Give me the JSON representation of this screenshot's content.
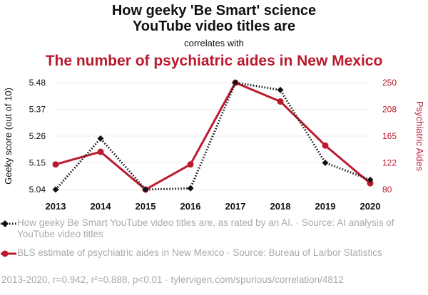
{
  "header": {
    "title_line1": "How geeky 'Be Smart' science",
    "title_line2": "YouTube video titles are",
    "correlates": "correlates with",
    "title_red": "The number of psychiatric aides in New Mexico"
  },
  "legend": {
    "series1": "How geeky Be Smart YouTube video titles are, as rated by an AI. · Source: AI analysis of YouTube video titles",
    "series2": "BLS estimate of psychiatric aides in New Mexico · Source: Bureau of Larbor Statistics"
  },
  "footer": "2013-2020, r=0.942, r²=0.888, p<0.01 · tylervigen.com/spurious/correlation/4812",
  "colors": {
    "black_series": "#111111",
    "red_series": "#bb1a2e",
    "grid": "#eeeeee"
  },
  "chart_data": {
    "type": "line",
    "x": [
      "2013",
      "2014",
      "2015",
      "2016",
      "2017",
      "2018",
      "2019",
      "2020"
    ],
    "y_left": {
      "label": "Geeky score (out of 10)",
      "ticks": [
        "5.04",
        "5.15",
        "5.26",
        "5.37",
        "5.48"
      ],
      "range": [
        5.04,
        5.48
      ]
    },
    "y_right": {
      "label": "Psychiatric Aides",
      "ticks": [
        "80",
        "122",
        "165",
        "208",
        "250"
      ],
      "range": [
        80,
        250
      ]
    },
    "series": [
      {
        "axis": "left",
        "marker": "diamond",
        "style": "dotted",
        "values": [
          5.04,
          5.25,
          5.04,
          5.045,
          5.48,
          5.45,
          5.15,
          5.08
        ]
      },
      {
        "axis": "right",
        "marker": "circle",
        "style": "solid",
        "values": [
          120,
          140,
          80,
          120,
          250,
          220,
          150,
          90
        ]
      }
    ],
    "grid": true
  }
}
